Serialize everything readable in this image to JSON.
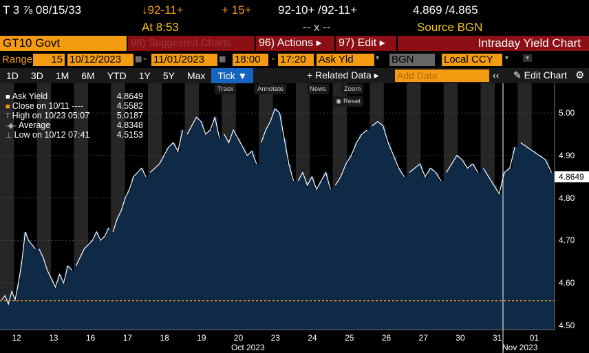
{
  "header": {
    "security": "T 3 ⅞ 08/15/33",
    "price": "↓92-11+",
    "change": "+ 15+",
    "bid_ask": "92-10+ /92-11+",
    "yields": "4.869 /4.865",
    "time": "At 8:53",
    "size": "-- x --",
    "source": "Source BGN"
  },
  "toolbar": {
    "ticker": "GT10 Govt",
    "suggested": "96) Suggested Charts",
    "actions": "96) Actions ▸",
    "edit": "97) Edit ▸",
    "title": "Intraday Yield Chart"
  },
  "range": {
    "label": "Range",
    "period": "15",
    "start": "10/12/2023",
    "end": "11/01/2023",
    "time_start": "18:00",
    "time_end": "17:20",
    "field": "Ask Yld",
    "source": "BGN",
    "currency": "Local CCY"
  },
  "periods": [
    "1D",
    "3D",
    "1M",
    "6M",
    "YTD",
    "1Y",
    "5Y",
    "Max",
    "Tick ▼"
  ],
  "related": "+ Related Data ▸",
  "add_data": "Add Data",
  "edit_chart": "✎ Edit Chart",
  "tools": [
    "Track",
    "Annotate",
    "News",
    "Zoom"
  ],
  "reset": "Reset",
  "legend": [
    {
      "label": "Ask Yield",
      "value": "4.8649"
    },
    {
      "label": "Close on 10/11 ---- ",
      "value": "4.5582"
    },
    {
      "label": "High on 10/23 05:07",
      "value": "5.0187"
    },
    {
      "label": "Average",
      "value": "4.8348"
    },
    {
      "label": "Low on 10/12 07:41",
      "value": "4.5153"
    }
  ],
  "colors": {
    "accent": "#f39c12",
    "bars": "#0f2a47",
    "shade": "#262626",
    "red": "#8b0f14",
    "yellow": "#f5c518"
  },
  "chart_data": {
    "type": "area",
    "title": "Intraday Yield Chart",
    "ylim": [
      4.49,
      5.07
    ],
    "yticks": [
      "5.00",
      "4.90",
      "4.80",
      "4.70",
      "4.60",
      "4.50"
    ],
    "xticks": [
      "12",
      "13",
      "16",
      "17",
      "18",
      "19",
      "20",
      "23",
      "24",
      "25",
      "26",
      "27",
      "30",
      "31",
      "01"
    ],
    "x_month_labels": [
      "Oct 2023",
      "Nov 2023"
    ],
    "last_value": "4.8649",
    "close_prev": 4.5582,
    "sessions": [
      {
        "day": "12",
        "points": [
          4.56,
          4.57,
          4.55,
          4.58,
          4.56,
          4.6,
          4.65,
          4.72,
          4.7,
          4.69,
          4.68
        ]
      },
      {
        "day": "13",
        "points": [
          4.68,
          4.66,
          4.63,
          4.61,
          4.59,
          4.62,
          4.6,
          4.64,
          4.63
        ]
      },
      {
        "day": "16",
        "points": [
          4.64,
          4.66,
          4.68,
          4.69,
          4.7,
          4.72,
          4.7,
          4.71,
          4.73
        ]
      },
      {
        "day": "17",
        "points": [
          4.72,
          4.75,
          4.77,
          4.8,
          4.82,
          4.85,
          4.86,
          4.87,
          4.85
        ]
      },
      {
        "day": "18",
        "points": [
          4.86,
          4.87,
          4.88,
          4.9,
          4.92,
          4.93,
          4.91,
          4.96
        ]
      },
      {
        "day": "19",
        "points": [
          4.95,
          4.97,
          4.99,
          4.98,
          4.95,
          4.96,
          4.99,
          4.94
        ]
      },
      {
        "day": "20",
        "points": [
          4.95,
          4.93,
          4.96,
          4.94,
          4.92,
          4.9,
          4.91,
          4.88
        ]
      },
      {
        "day": "23",
        "points": [
          4.93,
          4.96,
          4.98,
          5.01,
          5.0,
          4.94,
          4.88,
          4.84
        ]
      },
      {
        "day": "24",
        "points": [
          4.84,
          4.86,
          4.83,
          4.85,
          4.82,
          4.84,
          4.86,
          4.82
        ]
      },
      {
        "day": "25",
        "points": [
          4.83,
          4.85,
          4.88,
          4.9,
          4.93,
          4.95,
          4.96
        ]
      },
      {
        "day": "26",
        "points": [
          4.97,
          4.98,
          4.97,
          4.93,
          4.9,
          4.87,
          4.85
        ]
      },
      {
        "day": "27",
        "points": [
          4.86,
          4.87,
          4.88,
          4.85,
          4.87,
          4.86,
          4.84
        ]
      },
      {
        "day": "30",
        "points": [
          4.86,
          4.88,
          4.9,
          4.89,
          4.87,
          4.88,
          4.86
        ]
      },
      {
        "day": "31",
        "points": [
          4.87,
          4.85,
          4.83,
          4.81,
          4.86,
          4.87,
          4.92
        ]
      },
      {
        "day": "01",
        "points": [
          4.93,
          4.92,
          4.91,
          4.9,
          4.89,
          4.86
        ]
      }
    ]
  }
}
